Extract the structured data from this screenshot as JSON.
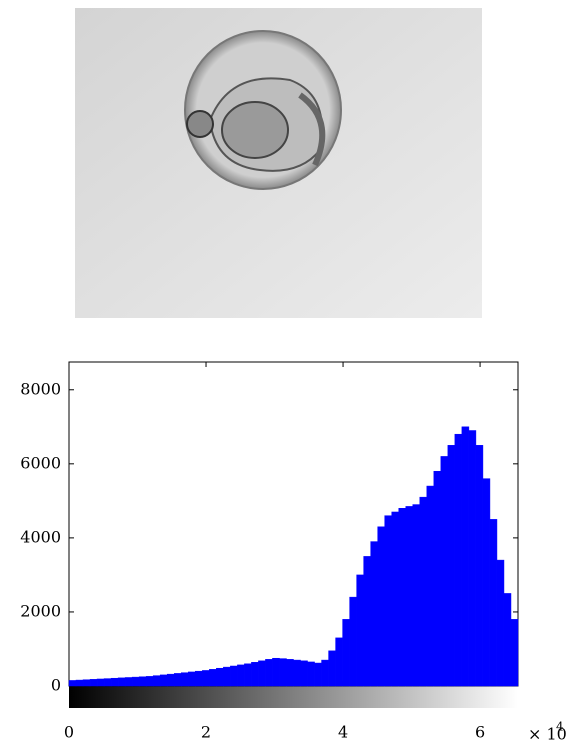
{
  "chart_data": {
    "type": "histogram",
    "color": "#0000ff",
    "bins": [
      0,
      1024,
      2048,
      3072,
      4096,
      5120,
      6144,
      7168,
      8192,
      9216,
      10240,
      11264,
      12288,
      13312,
      14336,
      15360,
      16384,
      17408,
      18432,
      19456,
      20480,
      21504,
      22528,
      23552,
      24576,
      25600,
      26624,
      27648,
      28672,
      29696,
      30720,
      31744,
      32768,
      33792,
      34816,
      35840,
      36864,
      37888,
      38912,
      39936,
      40960,
      41984,
      43008,
      44032,
      45056,
      46080,
      47104,
      48128,
      49152,
      50176,
      51200,
      52224,
      53248,
      54272,
      55296,
      56320,
      57344,
      58368,
      59392,
      60416,
      61440,
      62464,
      63488,
      64512,
      65536
    ],
    "values": [
      150,
      160,
      170,
      180,
      190,
      200,
      210,
      220,
      230,
      240,
      250,
      260,
      280,
      300,
      320,
      340,
      360,
      380,
      400,
      420,
      450,
      480,
      510,
      540,
      570,
      600,
      640,
      680,
      720,
      750,
      740,
      720,
      700,
      680,
      650,
      620,
      700,
      950,
      1300,
      1800,
      2400,
      3000,
      3500,
      3900,
      4300,
      4600,
      4700,
      4800,
      4850,
      4900,
      5100,
      5400,
      5800,
      6200,
      6500,
      6800,
      7000,
      6900,
      6500,
      5600,
      4500,
      3400,
      2500,
      1800
    ],
    "xlim": [
      0,
      65536
    ],
    "ylim": [
      0,
      8750
    ],
    "xticks": [
      0,
      {
        "value": 20000,
        "label": "2"
      },
      {
        "value": 40000,
        "label": "4"
      },
      {
        "value": 60000,
        "label": "6"
      }
    ],
    "yticks": [
      0,
      2000,
      4000,
      6000,
      8000
    ],
    "x_scale_label": "× 10",
    "x_scale_exponent": 4,
    "colorbar": [
      "#000000",
      "#ffffff"
    ]
  }
}
